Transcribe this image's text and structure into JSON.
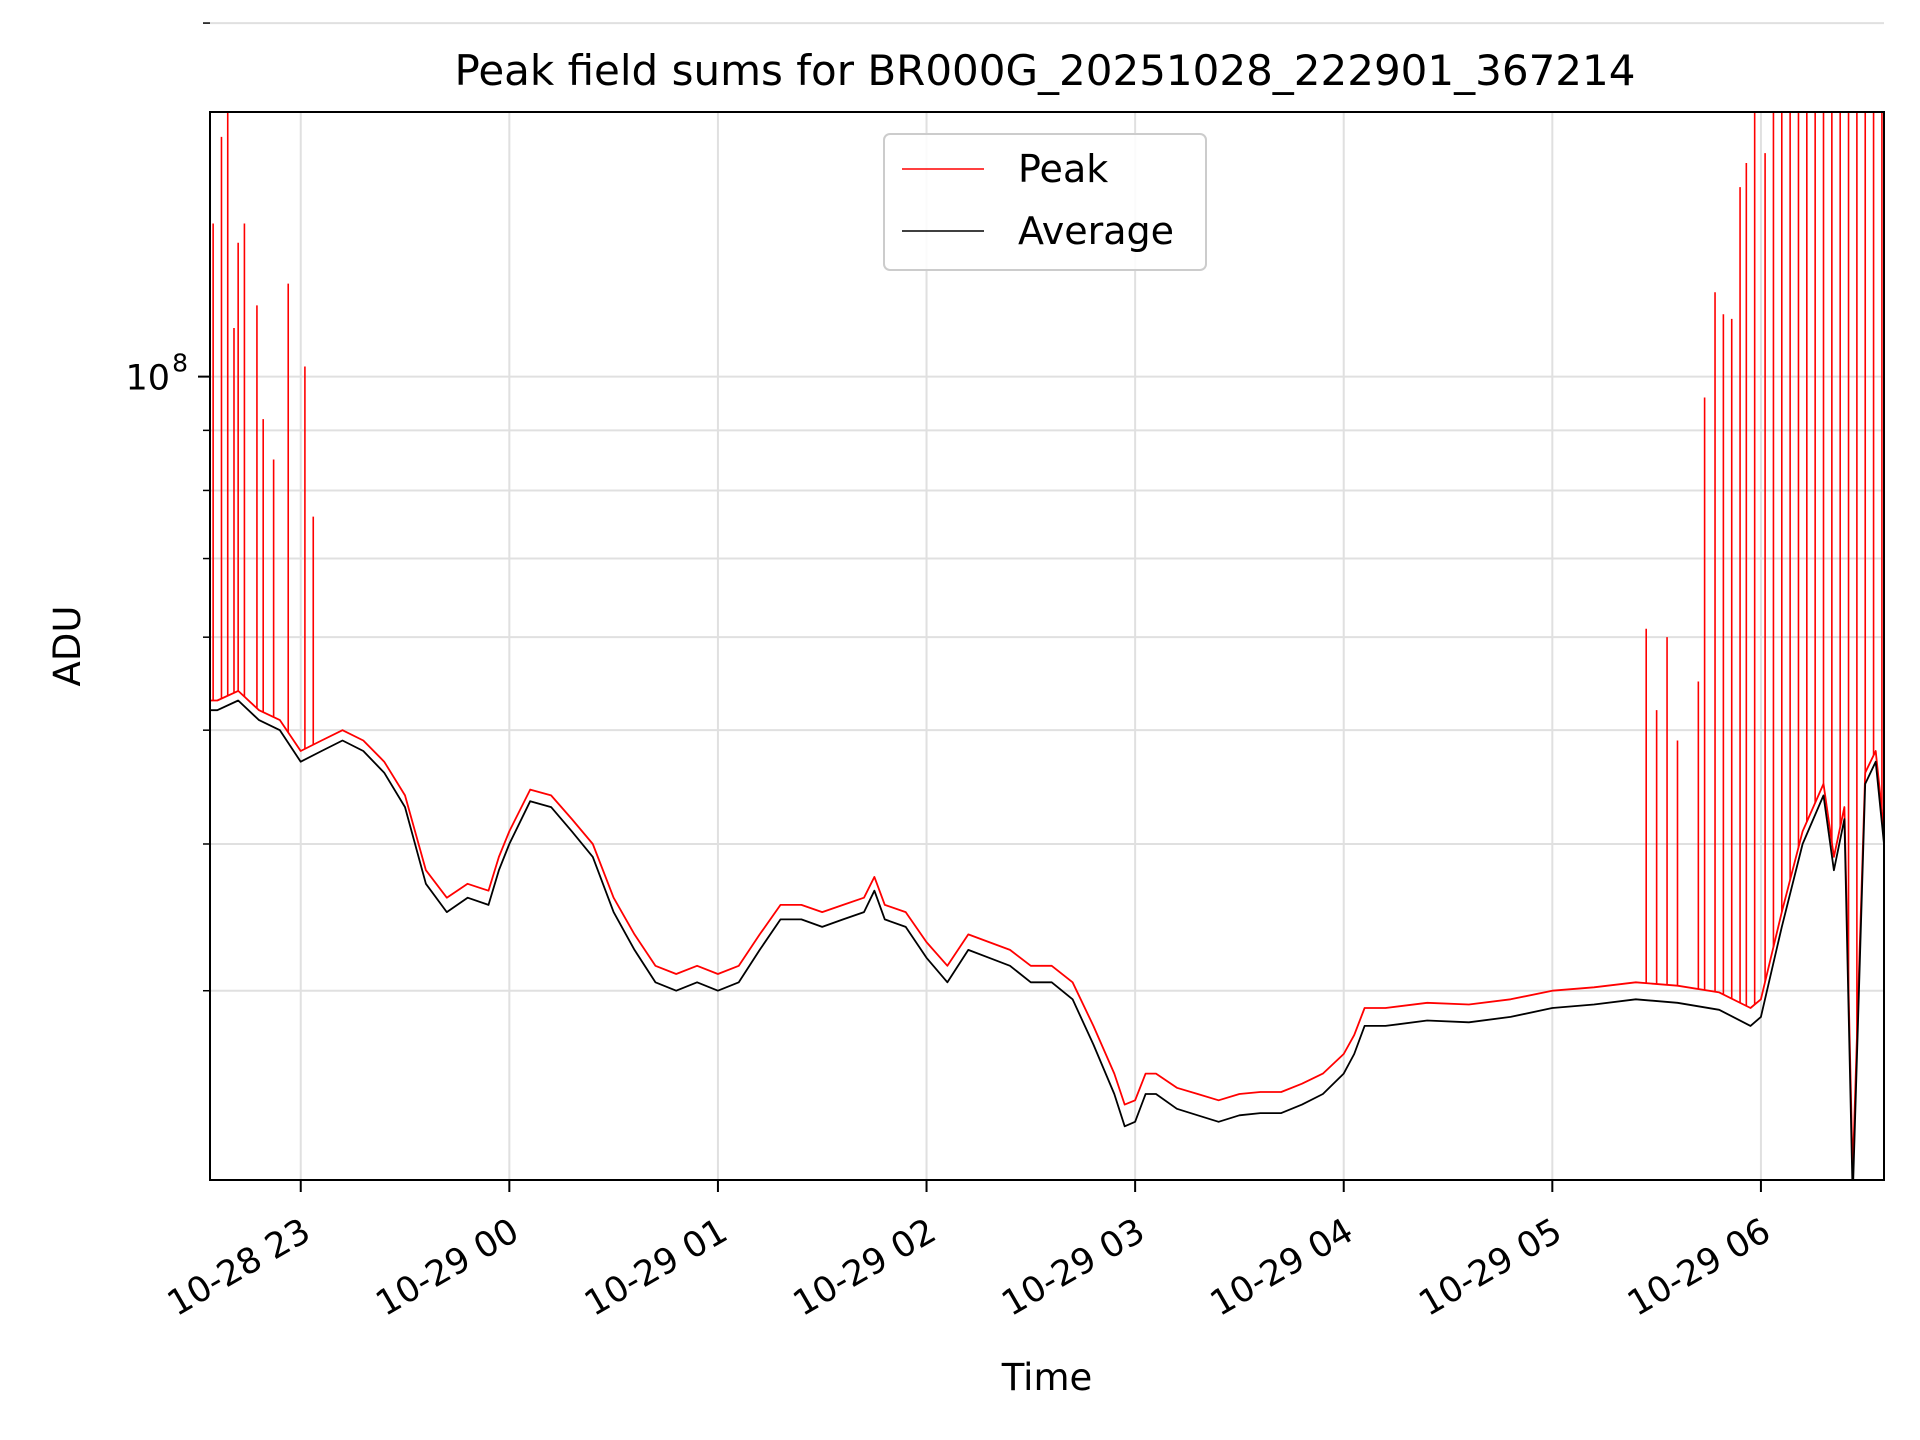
{
  "chart_data": {
    "type": "line",
    "title": "Peak field sums for BR000G_20251028_222901_367214",
    "xlabel": "Time",
    "ylabel": "ADU",
    "yscale": "log",
    "grid": true,
    "legend_position": "top-center",
    "x_unit": "hours since 10-28 22:00",
    "xlim": [
      0.565,
      8.59
    ],
    "ylim": [
      20700000,
      168000000
    ],
    "x_ticks": [
      {
        "x": 1,
        "label": "10-28 23"
      },
      {
        "x": 2,
        "label": "10-29 00"
      },
      {
        "x": 3,
        "label": "10-29 01"
      },
      {
        "x": 4,
        "label": "10-29 02"
      },
      {
        "x": 5,
        "label": "10-29 03"
      },
      {
        "x": 6,
        "label": "10-29 04"
      },
      {
        "x": 7,
        "label": "10-29 05"
      },
      {
        "x": 8,
        "label": "10-29 06"
      }
    ],
    "y_major_tick": {
      "value": 100000000,
      "label_base": "10",
      "label_exp": "8"
    },
    "y_minor_ticks": [
      30000000,
      40000000,
      50000000,
      60000000,
      70000000,
      80000000,
      90000000,
      200000000
    ],
    "series": [
      {
        "name": "Average",
        "color": "#000000",
        "x": [
          0.565,
          0.6,
          0.7,
          0.8,
          0.9,
          1.0,
          1.1,
          1.2,
          1.3,
          1.4,
          1.5,
          1.6,
          1.7,
          1.8,
          1.9,
          1.95,
          2.0,
          2.1,
          2.2,
          2.3,
          2.4,
          2.5,
          2.6,
          2.7,
          2.8,
          2.9,
          3.0,
          3.1,
          3.2,
          3.3,
          3.4,
          3.5,
          3.6,
          3.7,
          3.75,
          3.8,
          3.9,
          4.0,
          4.1,
          4.2,
          4.3,
          4.4,
          4.5,
          4.6,
          4.7,
          4.8,
          4.9,
          4.95,
          5.0,
          5.05,
          5.1,
          5.2,
          5.3,
          5.4,
          5.5,
          5.6,
          5.7,
          5.8,
          5.9,
          6.0,
          6.05,
          6.1,
          6.2,
          6.4,
          6.6,
          6.8,
          7.0,
          7.2,
          7.4,
          7.6,
          7.8,
          7.95,
          8.0,
          8.1,
          8.2,
          8.3,
          8.35,
          8.4,
          8.44,
          8.5,
          8.55,
          8.59
        ],
        "y": [
          52000000,
          52000000,
          53000000,
          51000000,
          50000000,
          47000000,
          48000000,
          49000000,
          48000000,
          46000000,
          43000000,
          37000000,
          35000000,
          36000000,
          35500000,
          38000000,
          40000000,
          43500000,
          43000000,
          41000000,
          39000000,
          35000000,
          32500000,
          30500000,
          30000000,
          30500000,
          30000000,
          30500000,
          32500000,
          34500000,
          34500000,
          34000000,
          34500000,
          35000000,
          36500000,
          34500000,
          34000000,
          32000000,
          30500000,
          32500000,
          32000000,
          31500000,
          30500000,
          30500000,
          29500000,
          27000000,
          24500000,
          23000000,
          23200000,
          24500000,
          24500000,
          23800000,
          23500000,
          23200000,
          23500000,
          23600000,
          23600000,
          24000000,
          24500000,
          25500000,
          26500000,
          28000000,
          28000000,
          28300000,
          28200000,
          28500000,
          29000000,
          29200000,
          29500000,
          29300000,
          28900000,
          28000000,
          28500000,
          34000000,
          40000000,
          44000000,
          38000000,
          42000000,
          20000000,
          45000000,
          47000000,
          40000000
        ]
      },
      {
        "name": "Peak",
        "color": "#ff0000",
        "x": [
          0.565,
          0.6,
          0.7,
          0.8,
          0.9,
          1.0,
          1.1,
          1.2,
          1.3,
          1.4,
          1.5,
          1.6,
          1.7,
          1.8,
          1.9,
          1.95,
          2.0,
          2.1,
          2.2,
          2.3,
          2.4,
          2.5,
          2.6,
          2.7,
          2.8,
          2.9,
          3.0,
          3.1,
          3.2,
          3.3,
          3.4,
          3.5,
          3.6,
          3.7,
          3.75,
          3.8,
          3.9,
          4.0,
          4.1,
          4.2,
          4.3,
          4.4,
          4.5,
          4.6,
          4.7,
          4.8,
          4.9,
          4.95,
          5.0,
          5.05,
          5.1,
          5.2,
          5.3,
          5.4,
          5.5,
          5.6,
          5.7,
          5.8,
          5.9,
          6.0,
          6.05,
          6.1,
          6.2,
          6.4,
          6.6,
          6.8,
          7.0,
          7.2,
          7.4,
          7.6,
          7.8,
          7.95,
          8.0,
          8.1,
          8.2,
          8.3,
          8.35,
          8.4,
          8.44,
          8.5,
          8.55,
          8.59
        ],
        "y": [
          53000000,
          53000000,
          54000000,
          52000000,
          51000000,
          48000000,
          49000000,
          50000000,
          49000000,
          47000000,
          44000000,
          38000000,
          36000000,
          37000000,
          36500000,
          39000000,
          41000000,
          44500000,
          44000000,
          42000000,
          40000000,
          36000000,
          33500000,
          31500000,
          31000000,
          31500000,
          31000000,
          31500000,
          33500000,
          35500000,
          35500000,
          35000000,
          35500000,
          36000000,
          37500000,
          35500000,
          35000000,
          33000000,
          31500000,
          33500000,
          33000000,
          32500000,
          31500000,
          31500000,
          30500000,
          28000000,
          25500000,
          24000000,
          24200000,
          25500000,
          25500000,
          24800000,
          24500000,
          24200000,
          24500000,
          24600000,
          24600000,
          25000000,
          25500000,
          26500000,
          27500000,
          29000000,
          29000000,
          29300000,
          29200000,
          29500000,
          30000000,
          30200000,
          30500000,
          30300000,
          29900000,
          29000000,
          29500000,
          35000000,
          41000000,
          45000000,
          39000000,
          43000000,
          21000000,
          46000000,
          48000000,
          41000000
        ],
        "spikes": [
          {
            "x": 0.58,
            "y": 135000000
          },
          {
            "x": 0.62,
            "y": 160000000
          },
          {
            "x": 0.65,
            "y": 168000000
          },
          {
            "x": 0.68,
            "y": 110000000
          },
          {
            "x": 0.7,
            "y": 130000000
          },
          {
            "x": 0.73,
            "y": 135000000
          },
          {
            "x": 0.79,
            "y": 115000000
          },
          {
            "x": 0.82,
            "y": 92000000
          },
          {
            "x": 0.87,
            "y": 85000000
          },
          {
            "x": 0.94,
            "y": 120000000
          },
          {
            "x": 1.02,
            "y": 102000000
          },
          {
            "x": 1.06,
            "y": 76000000
          },
          {
            "x": 7.45,
            "y": 61000000
          },
          {
            "x": 7.5,
            "y": 52000000
          },
          {
            "x": 7.55,
            "y": 60000000
          },
          {
            "x": 7.6,
            "y": 49000000
          },
          {
            "x": 7.7,
            "y": 55000000
          },
          {
            "x": 7.73,
            "y": 96000000
          },
          {
            "x": 7.78,
            "y": 118000000
          },
          {
            "x": 7.82,
            "y": 113000000
          },
          {
            "x": 7.86,
            "y": 112000000
          },
          {
            "x": 7.9,
            "y": 145000000
          },
          {
            "x": 7.93,
            "y": 152000000
          },
          {
            "x": 7.97,
            "y": 168000000
          },
          {
            "x": 8.02,
            "y": 155000000
          },
          {
            "x": 8.06,
            "y": 168000000
          },
          {
            "x": 8.1,
            "y": 168000000
          },
          {
            "x": 8.14,
            "y": 168000000
          },
          {
            "x": 8.18,
            "y": 168000000
          },
          {
            "x": 8.22,
            "y": 168000000
          },
          {
            "x": 8.26,
            "y": 168000000
          },
          {
            "x": 8.3,
            "y": 168000000
          },
          {
            "x": 8.34,
            "y": 168000000
          },
          {
            "x": 8.38,
            "y": 168000000
          },
          {
            "x": 8.42,
            "y": 168000000
          },
          {
            "x": 8.46,
            "y": 168000000
          },
          {
            "x": 8.5,
            "y": 168000000
          },
          {
            "x": 8.54,
            "y": 168000000
          },
          {
            "x": 8.58,
            "y": 168000000
          }
        ]
      }
    ]
  }
}
